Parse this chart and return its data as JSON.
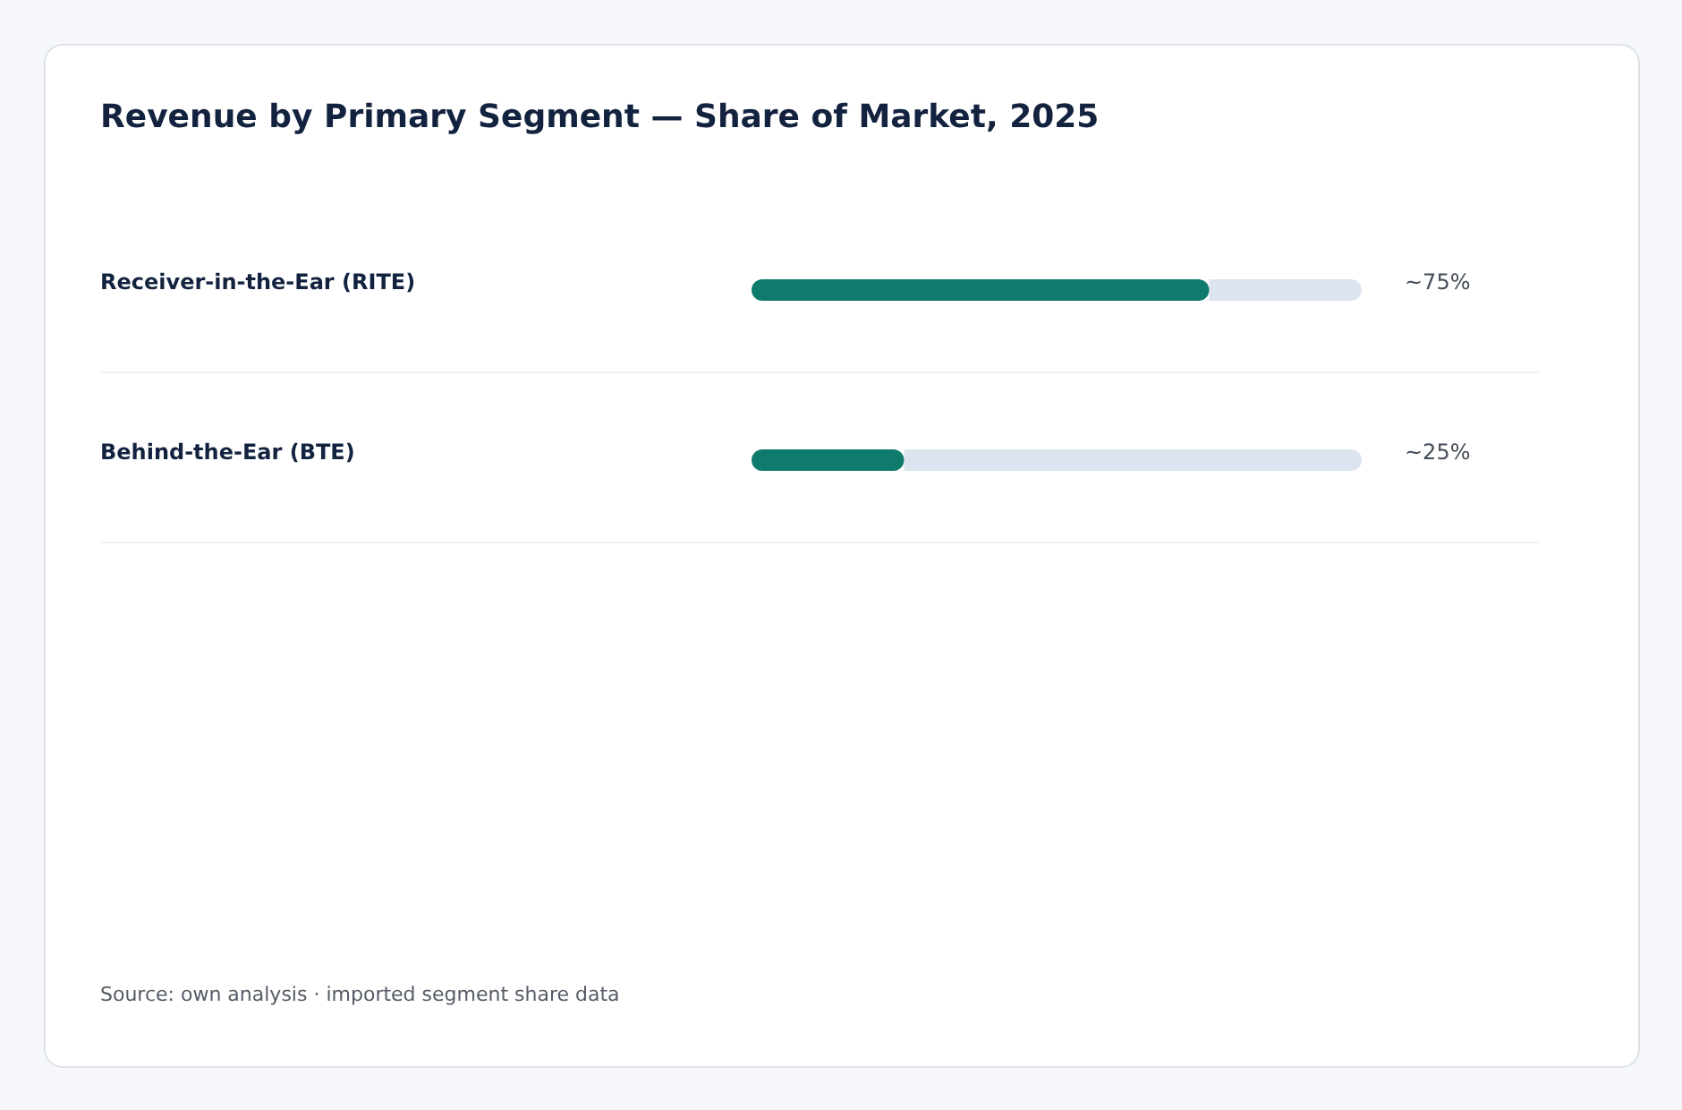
{
  "chart_data": {
    "type": "bar",
    "orientation": "horizontal",
    "title": "Revenue by Primary Segment — Share of Market, 2025",
    "categories": [
      "Receiver-in-the-Ear (RITE)",
      "Behind-the-Ear (BTE)"
    ],
    "values": [
      75,
      25
    ],
    "value_labels": [
      "~75%",
      "~25%"
    ],
    "color": "#0f7b6c",
    "xlim": [
      0,
      100
    ],
    "tick_labels": "y",
    "annotations": [
      "Source: own analysis · imported segment share data"
    ]
  }
}
